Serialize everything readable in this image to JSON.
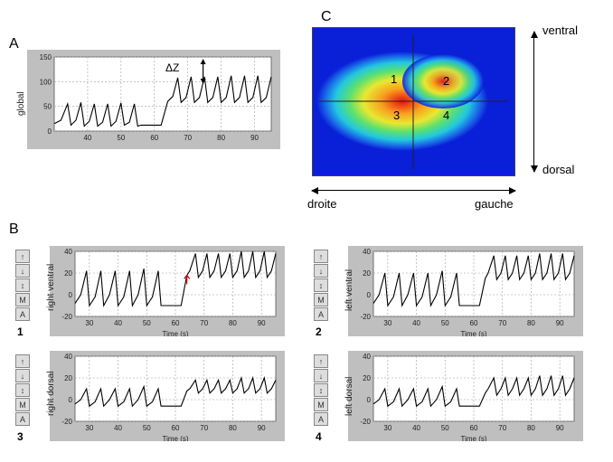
{
  "letters": {
    "A": "A",
    "B": "B",
    "C": "C"
  },
  "panelA": {
    "bg": "#bfbfbf",
    "grid": "#a0a0a0",
    "line": "#000",
    "ylabel": "global",
    "ylim": [
      0,
      150
    ],
    "yticks": [
      0,
      50,
      100,
      150
    ],
    "xlim": [
      30,
      95
    ],
    "xticks": [
      40,
      50,
      60,
      70,
      80,
      90
    ],
    "dz": "ΔZ",
    "series": [
      [
        30,
        15
      ],
      [
        32,
        22
      ],
      [
        34,
        55
      ],
      [
        35,
        12
      ],
      [
        36.5,
        22
      ],
      [
        38,
        58
      ],
      [
        39,
        10
      ],
      [
        40.5,
        20
      ],
      [
        42,
        55
      ],
      [
        43,
        10
      ],
      [
        44.5,
        18
      ],
      [
        46,
        55
      ],
      [
        47,
        10
      ],
      [
        48.5,
        20
      ],
      [
        50,
        57
      ],
      [
        51,
        12
      ],
      [
        52.5,
        18
      ],
      [
        54,
        55
      ],
      [
        55,
        10
      ],
      [
        56,
        12
      ],
      [
        62,
        12
      ],
      [
        64,
        60
      ],
      [
        65.5,
        70
      ],
      [
        67,
        108
      ],
      [
        68,
        58
      ],
      [
        69.5,
        68
      ],
      [
        71,
        110
      ],
      [
        72,
        58
      ],
      [
        73.5,
        68
      ],
      [
        75,
        110
      ],
      [
        76,
        58
      ],
      [
        77.5,
        68
      ],
      [
        79,
        110
      ],
      [
        80,
        58
      ],
      [
        81.5,
        68
      ],
      [
        83,
        112
      ],
      [
        84,
        58
      ],
      [
        85.5,
        68
      ],
      [
        87,
        112
      ],
      [
        88,
        58
      ],
      [
        89.5,
        68
      ],
      [
        91,
        112
      ],
      [
        92,
        58
      ],
      [
        93.5,
        68
      ],
      [
        95,
        110
      ]
    ]
  },
  "heatmap": {
    "ventral": "ventral",
    "dorsal": "dorsal",
    "droite": "droite",
    "gauche": "gauche",
    "nums": {
      "1": "1",
      "2": "2",
      "3": "3",
      "4": "4"
    },
    "bg": "#0a1fd8",
    "cross_color": "#222",
    "stops": [
      "#0a1fd8",
      "#1a6ae8",
      "#22c8e0",
      "#5ae070",
      "#e8e830",
      "#f8a020",
      "#e81010"
    ]
  },
  "panelsB": {
    "bg": "#bfbfbf",
    "grid": "#a0a0a0",
    "line": "#000",
    "xlabel": "Time (s)",
    "xlim": [
      25,
      95
    ],
    "xticks": [
      30,
      40,
      50,
      60,
      70,
      80,
      90
    ],
    "tool": [
      "↑",
      "↓",
      "↕",
      "M",
      "A"
    ],
    "p": [
      {
        "n": "1",
        "ylabel": "right ventral",
        "ylim": [
          -20,
          40
        ],
        "yticks": [
          -20,
          0,
          20,
          40
        ],
        "arrow": true,
        "series": [
          [
            25,
            -8
          ],
          [
            27,
            0
          ],
          [
            29,
            22
          ],
          [
            30,
            -10
          ],
          [
            32,
            -2
          ],
          [
            34,
            22
          ],
          [
            35,
            -10
          ],
          [
            37,
            0
          ],
          [
            39,
            22
          ],
          [
            40,
            -10
          ],
          [
            42,
            -2
          ],
          [
            44,
            22
          ],
          [
            45,
            -10
          ],
          [
            47,
            0
          ],
          [
            49,
            24
          ],
          [
            50,
            -10
          ],
          [
            52,
            -2
          ],
          [
            54,
            22
          ],
          [
            55,
            -10
          ],
          [
            56,
            -10
          ],
          [
            62,
            -10
          ],
          [
            64,
            18
          ],
          [
            65,
            22
          ],
          [
            67,
            38
          ],
          [
            68,
            16
          ],
          [
            69.5,
            22
          ],
          [
            71,
            38
          ],
          [
            72,
            16
          ],
          [
            73.5,
            22
          ],
          [
            75,
            38
          ],
          [
            76,
            16
          ],
          [
            77.5,
            22
          ],
          [
            79,
            38
          ],
          [
            80,
            16
          ],
          [
            81.5,
            22
          ],
          [
            83,
            40
          ],
          [
            84,
            16
          ],
          [
            85.5,
            22
          ],
          [
            87,
            40
          ],
          [
            88,
            16
          ],
          [
            89.5,
            22
          ],
          [
            91,
            40
          ],
          [
            92,
            16
          ],
          [
            93.5,
            22
          ],
          [
            95,
            38
          ]
        ]
      },
      {
        "n": "2",
        "ylabel": "left ventral",
        "ylim": [
          -20,
          40
        ],
        "yticks": [
          -20,
          0,
          20,
          40
        ],
        "arrow": false,
        "series": [
          [
            25,
            -8
          ],
          [
            27,
            0
          ],
          [
            29,
            20
          ],
          [
            30,
            -10
          ],
          [
            32,
            -2
          ],
          [
            34,
            20
          ],
          [
            35,
            -10
          ],
          [
            37,
            0
          ],
          [
            39,
            20
          ],
          [
            40,
            -10
          ],
          [
            42,
            -2
          ],
          [
            44,
            20
          ],
          [
            45,
            -10
          ],
          [
            47,
            0
          ],
          [
            49,
            22
          ],
          [
            50,
            -10
          ],
          [
            52,
            -2
          ],
          [
            54,
            20
          ],
          [
            55,
            -10
          ],
          [
            56,
            -10
          ],
          [
            62,
            -10
          ],
          [
            64,
            15
          ],
          [
            65,
            20
          ],
          [
            67,
            36
          ],
          [
            68,
            14
          ],
          [
            69.5,
            20
          ],
          [
            71,
            36
          ],
          [
            72,
            14
          ],
          [
            73.5,
            20
          ],
          [
            75,
            36
          ],
          [
            76,
            14
          ],
          [
            77.5,
            20
          ],
          [
            79,
            36
          ],
          [
            80,
            14
          ],
          [
            81.5,
            20
          ],
          [
            83,
            38
          ],
          [
            84,
            14
          ],
          [
            85.5,
            20
          ],
          [
            87,
            38
          ],
          [
            88,
            14
          ],
          [
            89.5,
            20
          ],
          [
            91,
            38
          ],
          [
            92,
            14
          ],
          [
            93.5,
            20
          ],
          [
            95,
            36
          ]
        ]
      },
      {
        "n": "3",
        "ylabel": "right dorsal",
        "ylim": [
          -20,
          40
        ],
        "yticks": [
          -20,
          0,
          20,
          40
        ],
        "arrow": false,
        "series": [
          [
            25,
            -4
          ],
          [
            27,
            0
          ],
          [
            29,
            10
          ],
          [
            30,
            -6
          ],
          [
            32,
            -2
          ],
          [
            34,
            10
          ],
          [
            35,
            -6
          ],
          [
            37,
            0
          ],
          [
            39,
            10
          ],
          [
            40,
            -6
          ],
          [
            42,
            -2
          ],
          [
            44,
            10
          ],
          [
            45,
            -6
          ],
          [
            47,
            0
          ],
          [
            49,
            12
          ],
          [
            50,
            -6
          ],
          [
            52,
            -2
          ],
          [
            54,
            10
          ],
          [
            55,
            -6
          ],
          [
            56,
            -6
          ],
          [
            62,
            -6
          ],
          [
            64,
            8
          ],
          [
            65,
            10
          ],
          [
            67,
            18
          ],
          [
            68,
            6
          ],
          [
            69.5,
            10
          ],
          [
            71,
            18
          ],
          [
            72,
            6
          ],
          [
            73.5,
            10
          ],
          [
            75,
            18
          ],
          [
            76,
            6
          ],
          [
            77.5,
            10
          ],
          [
            79,
            18
          ],
          [
            80,
            6
          ],
          [
            81.5,
            10
          ],
          [
            83,
            20
          ],
          [
            84,
            6
          ],
          [
            85.5,
            10
          ],
          [
            87,
            20
          ],
          [
            88,
            6
          ],
          [
            89.5,
            10
          ],
          [
            91,
            20
          ],
          [
            92,
            6
          ],
          [
            93.5,
            10
          ],
          [
            95,
            18
          ]
        ]
      },
      {
        "n": "4",
        "ylabel": "left dorsal",
        "ylim": [
          -20,
          40
        ],
        "yticks": [
          -20,
          0,
          20,
          40
        ],
        "arrow": false,
        "series": [
          [
            25,
            -4
          ],
          [
            27,
            0
          ],
          [
            29,
            10
          ],
          [
            30,
            -6
          ],
          [
            32,
            -2
          ],
          [
            34,
            10
          ],
          [
            35,
            -6
          ],
          [
            37,
            0
          ],
          [
            39,
            10
          ],
          [
            40,
            -6
          ],
          [
            42,
            -2
          ],
          [
            44,
            10
          ],
          [
            45,
            -6
          ],
          [
            47,
            0
          ],
          [
            49,
            12
          ],
          [
            50,
            -6
          ],
          [
            52,
            -2
          ],
          [
            54,
            10
          ],
          [
            55,
            -6
          ],
          [
            56,
            -6
          ],
          [
            62,
            -6
          ],
          [
            64,
            6
          ],
          [
            65,
            10
          ],
          [
            67,
            20
          ],
          [
            68,
            4
          ],
          [
            69.5,
            10
          ],
          [
            71,
            20
          ],
          [
            72,
            4
          ],
          [
            73.5,
            10
          ],
          [
            75,
            20
          ],
          [
            76,
            4
          ],
          [
            77.5,
            10
          ],
          [
            79,
            20
          ],
          [
            80,
            4
          ],
          [
            81.5,
            10
          ],
          [
            83,
            22
          ],
          [
            84,
            4
          ],
          [
            85.5,
            10
          ],
          [
            87,
            22
          ],
          [
            88,
            4
          ],
          [
            89.5,
            10
          ],
          [
            91,
            22
          ],
          [
            92,
            4
          ],
          [
            93.5,
            10
          ],
          [
            95,
            20
          ]
        ]
      }
    ]
  }
}
